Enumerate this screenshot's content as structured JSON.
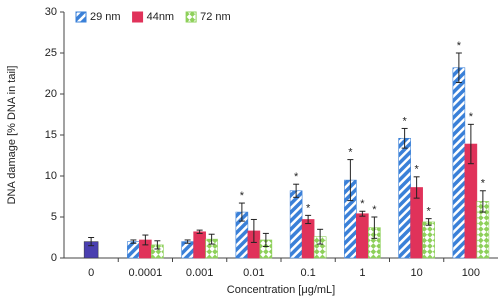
{
  "chart_data": {
    "type": "bar",
    "y_label": "DNA damage [% DNA in tail]",
    "x_label": "Concentration [μg/mL]",
    "categories": [
      "0",
      "0.0001",
      "0.001",
      "0.01",
      "0.1",
      "1",
      "10",
      "100"
    ],
    "ylim": [
      0,
      30
    ],
    "yticks": [
      0,
      5,
      10,
      15,
      20,
      25,
      30
    ],
    "legend": "top-left",
    "control": {
      "color": "#4a3fb0",
      "value": 2.0,
      "error": 0.5
    },
    "series": [
      {
        "name": "29 nm",
        "color": "#3a80d8",
        "pattern": "stripes",
        "values": [
          null,
          2.0,
          2.0,
          5.6,
          8.2,
          9.5,
          14.6,
          23.2
        ],
        "errors": [
          null,
          0.2,
          0.2,
          1.1,
          0.8,
          2.5,
          1.2,
          1.8
        ],
        "markers": [
          null,
          null,
          null,
          "*",
          "*",
          "*",
          "*",
          "*"
        ]
      },
      {
        "name": "44nm",
        "color": "#e0325a",
        "pattern": "solid",
        "values": [
          null,
          2.2,
          3.2,
          3.3,
          4.7,
          5.4,
          8.6,
          13.9
        ],
        "errors": [
          null,
          0.6,
          0.2,
          1.4,
          0.5,
          0.3,
          1.3,
          2.4
        ],
        "markers": [
          null,
          null,
          null,
          null,
          "*",
          "*",
          "*",
          "*"
        ]
      },
      {
        "name": "72 nm",
        "color": "#8ed05a",
        "pattern": "checker",
        "values": [
          null,
          1.6,
          2.3,
          2.2,
          2.6,
          3.7,
          4.4,
          6.9
        ],
        "errors": [
          null,
          0.5,
          0.6,
          0.8,
          0.9,
          1.3,
          0.4,
          1.3
        ],
        "markers": [
          null,
          null,
          null,
          null,
          null,
          "*",
          "*",
          "*"
        ]
      }
    ]
  }
}
